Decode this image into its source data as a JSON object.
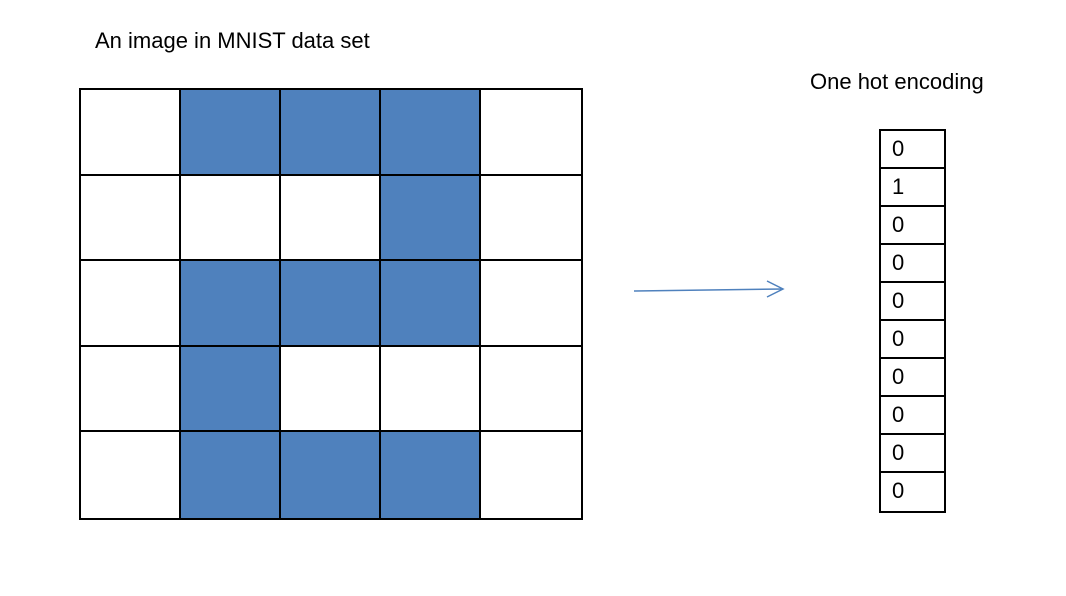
{
  "left_title": "An image in MNIST data set",
  "right_title": "One hot encoding",
  "fill_color": "#4f81bd",
  "empty_color": "#ffffff",
  "arrow_color": "#4f81bd",
  "pixel_grid": [
    [
      0,
      1,
      1,
      1,
      0
    ],
    [
      0,
      0,
      0,
      1,
      0
    ],
    [
      0,
      1,
      1,
      1,
      0
    ],
    [
      0,
      1,
      0,
      0,
      0
    ],
    [
      0,
      1,
      1,
      1,
      0
    ]
  ],
  "one_hot": [
    "0",
    "1",
    "0",
    "0",
    "0",
    "0",
    "0",
    "0",
    "0",
    "0"
  ]
}
